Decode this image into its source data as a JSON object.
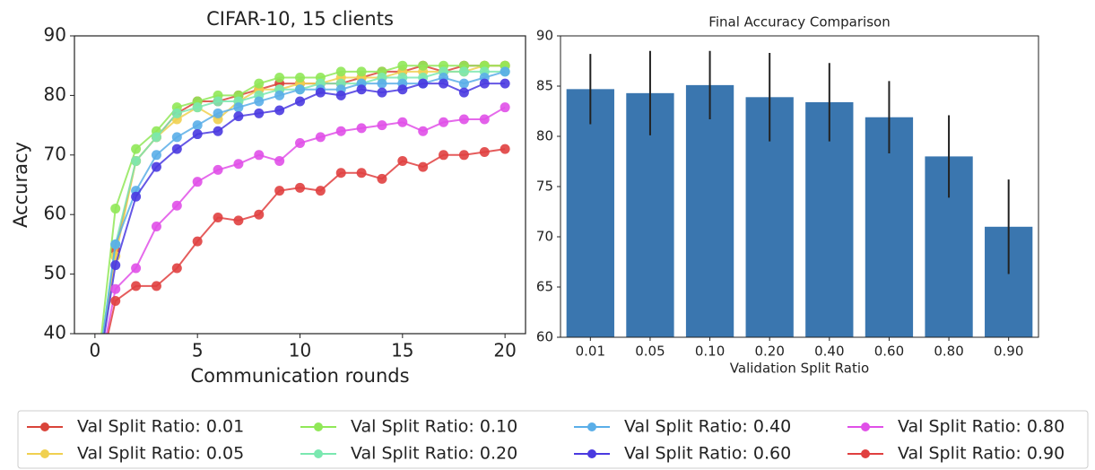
{
  "chart_data": [
    {
      "type": "line",
      "title": "CIFAR-10, 15 clients",
      "xlabel": "Communication rounds",
      "ylabel": "Accuracy",
      "x": [
        0,
        1,
        2,
        3,
        4,
        5,
        6,
        7,
        8,
        9,
        10,
        11,
        12,
        13,
        14,
        15,
        16,
        17,
        18,
        19,
        20
      ],
      "xlim": [
        -1,
        21
      ],
      "xticks": [
        0,
        5,
        10,
        15,
        20
      ],
      "ylim": [
        40,
        90
      ],
      "yticks": [
        40,
        50,
        60,
        70,
        80,
        90
      ],
      "series": [
        {
          "name": "Val Split Ratio: 0.01",
          "color": "#d9443a",
          "values": [
            30,
            54,
            69,
            73,
            77,
            79,
            79,
            80,
            81,
            82,
            82,
            82,
            82,
            83,
            84,
            84,
            85,
            84,
            85,
            85,
            85
          ]
        },
        {
          "name": "Val Split Ratio: 0.05",
          "color": "#f0d050",
          "values": [
            30,
            53,
            69,
            73,
            76,
            78,
            76,
            79,
            81,
            81,
            82,
            82,
            83,
            83,
            83,
            84,
            84,
            84,
            84,
            85,
            85
          ]
        },
        {
          "name": "Val Split Ratio: 0.10",
          "color": "#90e858",
          "values": [
            30,
            61,
            71,
            74,
            78,
            79,
            80,
            80,
            82,
            83,
            83,
            83,
            84,
            84,
            84,
            85,
            85,
            85,
            85,
            85,
            85
          ]
        },
        {
          "name": "Val Split Ratio: 0.20",
          "color": "#7ae8b0",
          "values": [
            30,
            55,
            69,
            73,
            77,
            78,
            79,
            79,
            80,
            81,
            81,
            82,
            82,
            82,
            83,
            83,
            83,
            84,
            84,
            84,
            84
          ]
        },
        {
          "name": "Val Split Ratio: 0.40",
          "color": "#5aaee8",
          "values": [
            30,
            55,
            64,
            70,
            73,
            75,
            77,
            78,
            79,
            80,
            81,
            81,
            81,
            82,
            82,
            82,
            82,
            83,
            82,
            83,
            84
          ]
        },
        {
          "name": "Val Split Ratio: 0.60",
          "color": "#4a3ae0",
          "values": [
            30,
            51.5,
            63,
            68,
            71,
            73.5,
            74,
            76.5,
            77,
            77.5,
            79,
            80.5,
            80,
            81,
            80.5,
            81,
            82,
            82,
            80.5,
            82,
            82
          ]
        },
        {
          "name": "Val Split Ratio: 0.80",
          "color": "#e050e8",
          "values": [
            30,
            47.5,
            51,
            58,
            61.5,
            65.5,
            67.5,
            68.5,
            70,
            69,
            72,
            73,
            74,
            74.5,
            75,
            75.5,
            74,
            75.5,
            76,
            76,
            78
          ]
        },
        {
          "name": "Val Split Ratio: 0.90",
          "color": "#e04040",
          "values": [
            30,
            45.5,
            48,
            48,
            51,
            55.5,
            59.5,
            59,
            60,
            64,
            64.5,
            64,
            67,
            67,
            66,
            69,
            68,
            70,
            70,
            70.5,
            71
          ]
        }
      ]
    },
    {
      "type": "bar",
      "title": "Final Accuracy Comparison",
      "xlabel": "Validation Split Ratio",
      "categories": [
        "0.01",
        "0.05",
        "0.10",
        "0.20",
        "0.40",
        "0.60",
        "0.80",
        "0.90"
      ],
      "values": [
        84.7,
        84.3,
        85.1,
        83.9,
        83.4,
        81.9,
        78.0,
        71.0
      ],
      "errors": [
        3.5,
        4.2,
        3.4,
        4.4,
        3.9,
        3.6,
        4.1,
        4.7
      ],
      "color": "#3a76af",
      "ylim": [
        60,
        90
      ],
      "yticks": [
        60,
        65,
        70,
        75,
        80,
        85,
        90
      ]
    }
  ]
}
